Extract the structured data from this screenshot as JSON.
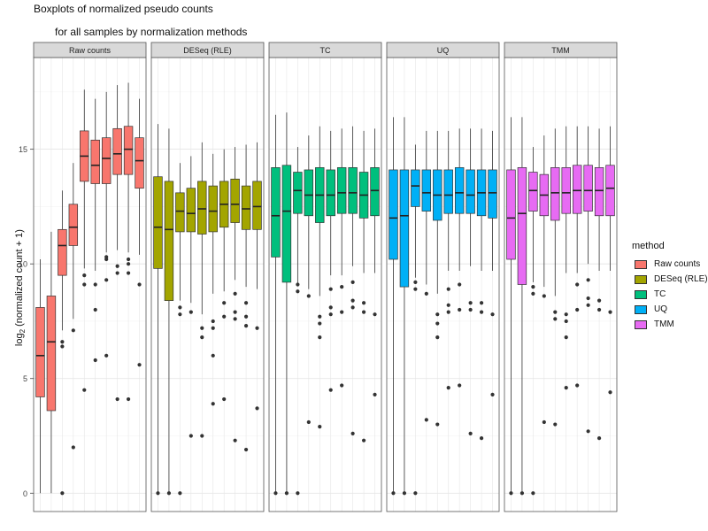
{
  "chart_data": {
    "type": "boxplot",
    "title": "Boxplots of normalized pseudo counts",
    "subtitle": "for all samples by normalization methods",
    "ylabel_base": "log",
    "ylabel_sub": "2",
    "ylabel_rest": " (normalized count + 1)",
    "ylim": [
      -0.8,
      19.0
    ],
    "yticks": [
      0,
      5,
      10,
      15
    ],
    "grid": true,
    "legend_title": "method",
    "legend_position": "right",
    "series": [
      {
        "name": "Raw counts",
        "color": "#F8766D",
        "boxes": [
          {
            "whislo": 0.0,
            "q1": 4.2,
            "med": 6.0,
            "q3": 8.1,
            "whishi": 10.2,
            "fliers": []
          },
          {
            "whislo": 0.0,
            "q1": 3.6,
            "med": 6.6,
            "q3": 8.6,
            "whishi": 11.4,
            "fliers": []
          },
          {
            "whislo": 7.1,
            "q1": 9.5,
            "med": 10.8,
            "q3": 11.5,
            "whishi": 13.2,
            "fliers": [
              0.0,
              6.4,
              6.6
            ]
          },
          {
            "whislo": 7.6,
            "q1": 10.8,
            "med": 11.6,
            "q3": 12.6,
            "whishi": 14.4,
            "fliers": [
              2.0,
              7.1
            ]
          },
          {
            "whislo": 9.8,
            "q1": 13.6,
            "med": 14.7,
            "q3": 15.8,
            "whishi": 17.6,
            "fliers": [
              4.5,
              9.1,
              9.5
            ]
          },
          {
            "whislo": 9.7,
            "q1": 13.5,
            "med": 14.3,
            "q3": 15.4,
            "whishi": 17.2,
            "fliers": [
              5.8,
              8.0,
              9.1
            ]
          },
          {
            "whislo": 10.5,
            "q1": 13.5,
            "med": 14.6,
            "q3": 15.5,
            "whishi": 17.5,
            "fliers": [
              6.0,
              9.3,
              10.2,
              10.3
            ]
          },
          {
            "whislo": 10.6,
            "q1": 13.9,
            "med": 14.8,
            "q3": 15.9,
            "whishi": 17.8,
            "fliers": [
              4.1,
              9.6,
              9.9
            ]
          },
          {
            "whislo": 10.5,
            "q1": 13.9,
            "med": 15.0,
            "q3": 16.0,
            "whishi": 17.9,
            "fliers": [
              4.1,
              9.6,
              10.0,
              10.2
            ]
          },
          {
            "whislo": 10.4,
            "q1": 13.3,
            "med": 14.5,
            "q3": 15.5,
            "whishi": 17.2,
            "fliers": [
              5.6,
              9.1
            ]
          }
        ]
      },
      {
        "name": "DESeq (RLE)",
        "color": "#A3A500",
        "boxes": [
          {
            "whislo": 0.0,
            "q1": 9.8,
            "med": 11.6,
            "q3": 13.8,
            "whishi": 16.1,
            "fliers": [
              0.0
            ]
          },
          {
            "whislo": 0.0,
            "q1": 8.4,
            "med": 11.5,
            "q3": 13.6,
            "whishi": 15.9,
            "fliers": [
              0.0
            ]
          },
          {
            "whislo": 8.4,
            "q1": 11.4,
            "med": 12.3,
            "q3": 13.1,
            "whishi": 14.4,
            "fliers": [
              0.0,
              7.8,
              8.1
            ]
          },
          {
            "whislo": 8.3,
            "q1": 11.4,
            "med": 12.2,
            "q3": 13.3,
            "whishi": 14.7,
            "fliers": [
              2.5,
              7.9
            ]
          },
          {
            "whislo": 7.8,
            "q1": 11.3,
            "med": 12.4,
            "q3": 13.6,
            "whishi": 15.3,
            "fliers": [
              2.5,
              6.8,
              7.2
            ]
          },
          {
            "whislo": 8.7,
            "q1": 11.4,
            "med": 12.3,
            "q3": 13.4,
            "whishi": 14.8,
            "fliers": [
              3.9,
              6.0,
              7.2,
              7.5
            ]
          },
          {
            "whislo": 8.8,
            "q1": 11.6,
            "med": 12.6,
            "q3": 13.6,
            "whishi": 15.0,
            "fliers": [
              4.1,
              7.7,
              8.3
            ]
          },
          {
            "whislo": 9.3,
            "q1": 11.8,
            "med": 12.6,
            "q3": 13.7,
            "whishi": 15.1,
            "fliers": [
              2.3,
              7.6,
              7.9,
              8.7
            ]
          },
          {
            "whislo": 9.0,
            "q1": 11.5,
            "med": 12.4,
            "q3": 13.4,
            "whishi": 15.2,
            "fliers": [
              1.9,
              7.3,
              7.7,
              8.3
            ]
          },
          {
            "whislo": 8.9,
            "q1": 11.5,
            "med": 12.5,
            "q3": 13.6,
            "whishi": 15.3,
            "fliers": [
              3.7,
              7.2
            ]
          }
        ]
      },
      {
        "name": "TC",
        "color": "#00BF7D",
        "boxes": [
          {
            "whislo": 0.0,
            "q1": 10.3,
            "med": 12.1,
            "q3": 14.2,
            "whishi": 16.5,
            "fliers": [
              0.0
            ]
          },
          {
            "whislo": 0.0,
            "q1": 9.2,
            "med": 12.3,
            "q3": 14.3,
            "whishi": 16.6,
            "fliers": [
              0.0
            ]
          },
          {
            "whislo": 9.1,
            "q1": 12.2,
            "med": 13.2,
            "q3": 14.0,
            "whishi": 15.1,
            "fliers": [
              0.0,
              8.8,
              9.1
            ]
          },
          {
            "whislo": 8.9,
            "q1": 12.1,
            "med": 13.0,
            "q3": 14.1,
            "whishi": 15.6,
            "fliers": [
              3.1,
              8.6
            ]
          },
          {
            "whislo": 8.6,
            "q1": 11.8,
            "med": 13.0,
            "q3": 14.2,
            "whishi": 16.0,
            "fliers": [
              2.9,
              6.8,
              7.4,
              7.7
            ]
          },
          {
            "whislo": 9.5,
            "q1": 12.1,
            "med": 13.0,
            "q3": 14.1,
            "whishi": 15.8,
            "fliers": [
              4.5,
              7.8,
              8.1,
              8.9
            ]
          },
          {
            "whislo": 9.5,
            "q1": 12.2,
            "med": 13.1,
            "q3": 14.2,
            "whishi": 15.9,
            "fliers": [
              4.7,
              7.9,
              9.0
            ]
          },
          {
            "whislo": 9.9,
            "q1": 12.2,
            "med": 13.1,
            "q3": 14.2,
            "whishi": 16.0,
            "fliers": [
              2.6,
              8.1,
              8.4,
              9.2
            ]
          },
          {
            "whislo": 9.6,
            "q1": 12.0,
            "med": 13.0,
            "q3": 14.0,
            "whishi": 15.8,
            "fliers": [
              2.3,
              7.9,
              8.3
            ]
          },
          {
            "whislo": 9.6,
            "q1": 12.1,
            "med": 13.2,
            "q3": 14.2,
            "whishi": 15.9,
            "fliers": [
              4.3,
              7.8
            ]
          }
        ]
      },
      {
        "name": "UQ",
        "color": "#00B0F6",
        "boxes": [
          {
            "whislo": 0.0,
            "q1": 10.2,
            "med": 12.0,
            "q3": 14.1,
            "whishi": 16.4,
            "fliers": [
              0.0
            ]
          },
          {
            "whislo": 0.0,
            "q1": 9.0,
            "med": 12.1,
            "q3": 14.1,
            "whishi": 16.4,
            "fliers": [
              0.0
            ]
          },
          {
            "whislo": 9.4,
            "q1": 12.5,
            "med": 13.4,
            "q3": 14.1,
            "whishi": 15.2,
            "fliers": [
              0.0,
              8.9,
              9.2
            ]
          },
          {
            "whislo": 9.1,
            "q1": 12.3,
            "med": 13.1,
            "q3": 14.1,
            "whishi": 15.8,
            "fliers": [
              3.2,
              8.7
            ]
          },
          {
            "whislo": 8.7,
            "q1": 11.9,
            "med": 13.0,
            "q3": 14.1,
            "whishi": 15.8,
            "fliers": [
              3.0,
              6.8,
              7.4,
              7.8
            ]
          },
          {
            "whislo": 9.7,
            "q1": 12.2,
            "med": 13.0,
            "q3": 14.1,
            "whishi": 15.8,
            "fliers": [
              4.6,
              7.9,
              8.2,
              8.9
            ]
          },
          {
            "whislo": 9.7,
            "q1": 12.2,
            "med": 13.1,
            "q3": 14.2,
            "whishi": 15.9,
            "fliers": [
              4.7,
              8.0,
              9.1
            ]
          },
          {
            "whislo": 9.9,
            "q1": 12.2,
            "med": 13.0,
            "q3": 14.1,
            "whishi": 15.9,
            "fliers": [
              2.6,
              8.0,
              8.3
            ]
          },
          {
            "whislo": 9.7,
            "q1": 12.1,
            "med": 13.1,
            "q3": 14.1,
            "whishi": 15.9,
            "fliers": [
              2.4,
              7.9,
              8.3
            ]
          },
          {
            "whislo": 9.7,
            "q1": 12.0,
            "med": 13.1,
            "q3": 14.1,
            "whishi": 15.8,
            "fliers": [
              4.3,
              7.8
            ]
          }
        ]
      },
      {
        "name": "TMM",
        "color": "#E76BF3",
        "boxes": [
          {
            "whislo": 0.0,
            "q1": 10.2,
            "med": 12.0,
            "q3": 14.1,
            "whishi": 16.4,
            "fliers": [
              0.0
            ]
          },
          {
            "whislo": 0.0,
            "q1": 9.1,
            "med": 12.2,
            "q3": 14.2,
            "whishi": 16.4,
            "fliers": [
              0.0
            ]
          },
          {
            "whislo": 9.2,
            "q1": 12.3,
            "med": 13.2,
            "q3": 14.0,
            "whishi": 15.1,
            "fliers": [
              0.0,
              8.7,
              9.0
            ]
          },
          {
            "whislo": 9.0,
            "q1": 12.1,
            "med": 13.0,
            "q3": 13.9,
            "whishi": 15.6,
            "fliers": [
              3.1,
              8.6
            ]
          },
          {
            "whislo": 8.6,
            "q1": 11.9,
            "med": 13.1,
            "q3": 14.2,
            "whishi": 15.9,
            "fliers": [
              3.0,
              7.6,
              7.9
            ]
          },
          {
            "whislo": 9.6,
            "q1": 12.2,
            "med": 13.1,
            "q3": 14.2,
            "whishi": 16.0,
            "fliers": [
              4.6,
              6.8,
              7.5,
              7.8
            ]
          },
          {
            "whislo": 9.6,
            "q1": 12.2,
            "med": 13.2,
            "q3": 14.3,
            "whishi": 16.0,
            "fliers": [
              4.7,
              8.0,
              9.1
            ]
          },
          {
            "whislo": 10.0,
            "q1": 12.3,
            "med": 13.2,
            "q3": 14.3,
            "whishi": 16.0,
            "fliers": [
              2.7,
              8.2,
              8.5,
              9.3
            ]
          },
          {
            "whislo": 9.7,
            "q1": 12.1,
            "med": 13.2,
            "q3": 14.2,
            "whishi": 15.9,
            "fliers": [
              2.4,
              8.0,
              8.4
            ]
          },
          {
            "whislo": 9.7,
            "q1": 12.1,
            "med": 13.3,
            "q3": 14.3,
            "whishi": 16.0,
            "fliers": [
              4.4,
              7.9
            ]
          }
        ]
      }
    ]
  }
}
